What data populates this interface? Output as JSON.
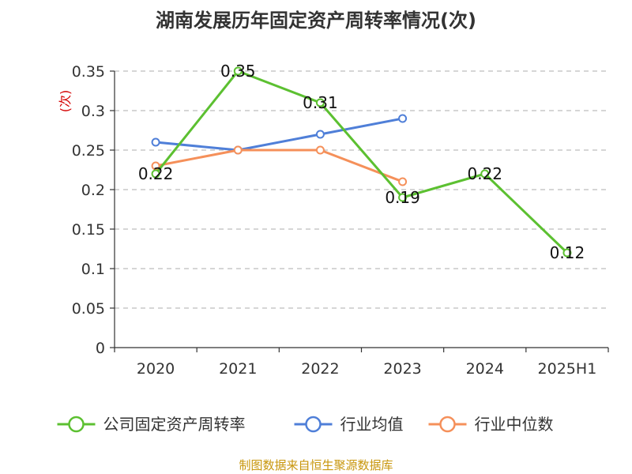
{
  "chart_data": {
    "type": "line",
    "title": "湖南发展历年固定资产周转率情况(次)",
    "ylabel": "(次)",
    "xlabel": "",
    "categories": [
      "2020",
      "2021",
      "2022",
      "2023",
      "2024",
      "2025H1"
    ],
    "ylim": [
      0,
      0.35
    ],
    "yticks": [
      0,
      0.05,
      0.1,
      0.15,
      0.2,
      0.25,
      0.3,
      0.35
    ],
    "ytick_labels": [
      "0",
      "0.05",
      "0.1",
      "0.15",
      "0.2",
      "0.25",
      "0.3",
      "0.35"
    ],
    "grid": true,
    "legend_position": "bottom",
    "series": [
      {
        "name": "公司固定资产周转率",
        "color": "#5cc031",
        "values": [
          0.22,
          0.35,
          0.31,
          0.19,
          0.22,
          0.12
        ],
        "labels": [
          "0.22",
          "0.35",
          "0.31",
          "0.19",
          "0.22",
          "0.12"
        ]
      },
      {
        "name": "行业均值",
        "color": "#4f7fd8",
        "values": [
          0.26,
          0.25,
          0.27,
          0.29,
          null,
          null
        ],
        "labels": []
      },
      {
        "name": "行业中位数",
        "color": "#f5905a",
        "values": [
          0.23,
          0.25,
          0.25,
          0.21,
          null,
          null
        ],
        "labels": []
      }
    ],
    "source": "制图数据来自恒生聚源数据库"
  }
}
